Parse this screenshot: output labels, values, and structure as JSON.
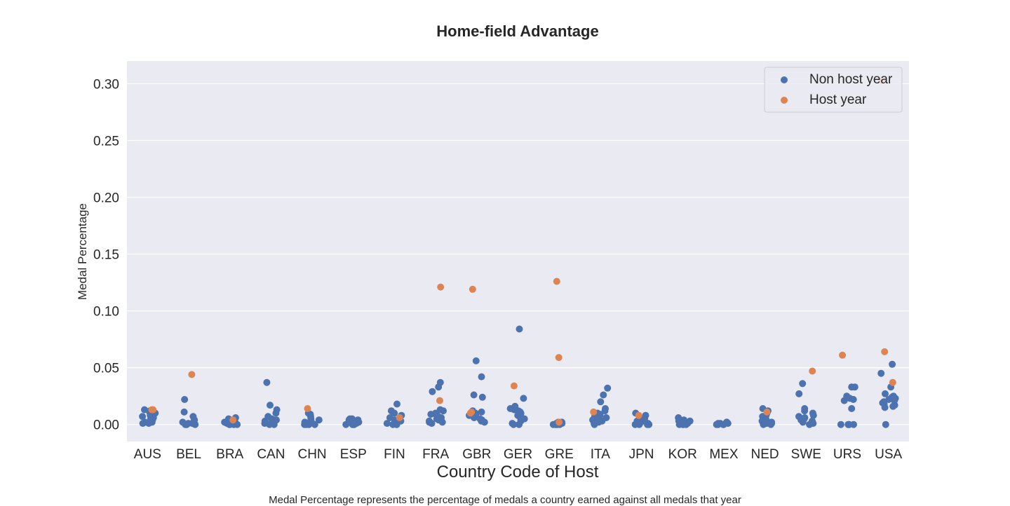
{
  "chart_data": {
    "type": "scatter",
    "style": "strip plot (jittered categorical scatter)",
    "title": "Home-field Advantage",
    "xlabel": "Country Code of Host",
    "ylabel": "Medal Percentage",
    "caption": "Medal Percentage represents the percentage of medals a country earned against all medals that year",
    "categories": [
      "AUS",
      "BEL",
      "BRA",
      "CAN",
      "CHN",
      "ESP",
      "FIN",
      "FRA",
      "GBR",
      "GER",
      "GRE",
      "ITA",
      "JPN",
      "KOR",
      "MEX",
      "NED",
      "SWE",
      "URS",
      "USA"
    ],
    "ylim": [
      -0.015,
      0.32
    ],
    "yticks": [
      0.0,
      0.05,
      0.1,
      0.15,
      0.2,
      0.25,
      0.3
    ],
    "ytick_labels": [
      "0.00",
      "0.05",
      "0.10",
      "0.15",
      "0.20",
      "0.25",
      "0.30"
    ],
    "grid": true,
    "background": "#eaeaf2",
    "legend": {
      "position": "top-right"
    },
    "series": [
      {
        "name": "Non host year",
        "color": "#4c72b0",
        "points": {
          "AUS": [
            0.012,
            0.013,
            0.011,
            0.01,
            0.009,
            0.008,
            0.007,
            0.006,
            0.005,
            0.004,
            0.003,
            0.002,
            0.002,
            0.001,
            0.001
          ],
          "BEL": [
            0.022,
            0.011,
            0.007,
            0.004,
            0.003,
            0.002,
            0.001,
            0.001,
            0.0,
            0.0,
            0.0,
            0.0
          ],
          "BRA": [
            0.006,
            0.005,
            0.004,
            0.003,
            0.002,
            0.002,
            0.001,
            0.001,
            0.0,
            0.0,
            0.0,
            0.0
          ],
          "CAN": [
            0.037,
            0.017,
            0.013,
            0.01,
            0.007,
            0.005,
            0.004,
            0.004,
            0.003,
            0.002,
            0.001,
            0.001,
            0.0,
            0.0
          ],
          "CHN": [
            0.01,
            0.009,
            0.007,
            0.005,
            0.004,
            0.003,
            0.002,
            0.001,
            0.0,
            0.0,
            0.0,
            0.0
          ],
          "ESP": [
            0.005,
            0.005,
            0.004,
            0.004,
            0.003,
            0.002,
            0.002,
            0.001,
            0.001,
            0.0,
            0.0,
            0.0,
            0.0
          ],
          "FIN": [
            0.018,
            0.012,
            0.01,
            0.008,
            0.006,
            0.004,
            0.003,
            0.002,
            0.001,
            0.0,
            0.0,
            0.0
          ],
          "FRA": [
            0.037,
            0.033,
            0.029,
            0.013,
            0.012,
            0.01,
            0.009,
            0.008,
            0.007,
            0.006,
            0.005,
            0.004,
            0.003,
            0.002,
            0.002,
            0.001
          ],
          "GBR": [
            0.056,
            0.042,
            0.026,
            0.024,
            0.012,
            0.011,
            0.01,
            0.009,
            0.008,
            0.006,
            0.005,
            0.004,
            0.003,
            0.002
          ],
          "GER": [
            0.084,
            0.023,
            0.016,
            0.014,
            0.013,
            0.012,
            0.011,
            0.01,
            0.009,
            0.008,
            0.006,
            0.005,
            0.003,
            0.001,
            0.0,
            0.0
          ],
          "GRE": [
            0.002,
            0.002,
            0.001,
            0.001,
            0.001,
            0.0,
            0.0,
            0.0,
            0.0,
            0.0
          ],
          "ITA": [
            0.032,
            0.026,
            0.02,
            0.014,
            0.012,
            0.01,
            0.009,
            0.008,
            0.007,
            0.006,
            0.005,
            0.004,
            0.003,
            0.002,
            0.001,
            0.001,
            0.0
          ],
          "JPN": [
            0.01,
            0.008,
            0.006,
            0.005,
            0.004,
            0.003,
            0.002,
            0.001,
            0.001,
            0.0,
            0.0,
            0.0,
            0.0
          ],
          "KOR": [
            0.006,
            0.005,
            0.004,
            0.003,
            0.003,
            0.002,
            0.001,
            0.001,
            0.0,
            0.0,
            0.0,
            0.0
          ],
          "MEX": [
            0.002,
            0.002,
            0.001,
            0.001,
            0.001,
            0.0,
            0.0,
            0.0,
            0.0
          ],
          "NED": [
            0.014,
            0.012,
            0.01,
            0.008,
            0.007,
            0.006,
            0.005,
            0.004,
            0.003,
            0.002,
            0.001,
            0.001,
            0.0,
            0.0
          ],
          "SWE": [
            0.036,
            0.027,
            0.014,
            0.012,
            0.01,
            0.008,
            0.007,
            0.006,
            0.005,
            0.004,
            0.003,
            0.002,
            0.001,
            0.0
          ],
          "URS": [
            0.033,
            0.033,
            0.025,
            0.023,
            0.022,
            0.021,
            0.014,
            0.0,
            0.0,
            0.0,
            0.0,
            0.0
          ],
          "USA": [
            0.053,
            0.045,
            0.033,
            0.027,
            0.025,
            0.024,
            0.023,
            0.022,
            0.021,
            0.02,
            0.019,
            0.018,
            0.017,
            0.016,
            0.015,
            0.0
          ]
        }
      },
      {
        "name": "Host year",
        "color": "#dd8452",
        "points": {
          "AUS": [
            0.013,
            0.013
          ],
          "BEL": [
            0.044
          ],
          "BRA": [
            0.004
          ],
          "CHN": [
            0.014
          ],
          "FIN": [
            0.006
          ],
          "FRA": [
            0.121,
            0.021
          ],
          "GBR": [
            0.119,
            0.011,
            0.01
          ],
          "GER": [
            0.034
          ],
          "GRE": [
            0.126,
            0.059,
            0.002
          ],
          "ITA": [
            0.011
          ],
          "JPN": [
            0.008
          ],
          "NED": [
            0.011
          ],
          "SWE": [
            0.047
          ],
          "URS": [
            0.061
          ],
          "USA": [
            0.303,
            0.064,
            0.037
          ]
        }
      }
    ]
  }
}
